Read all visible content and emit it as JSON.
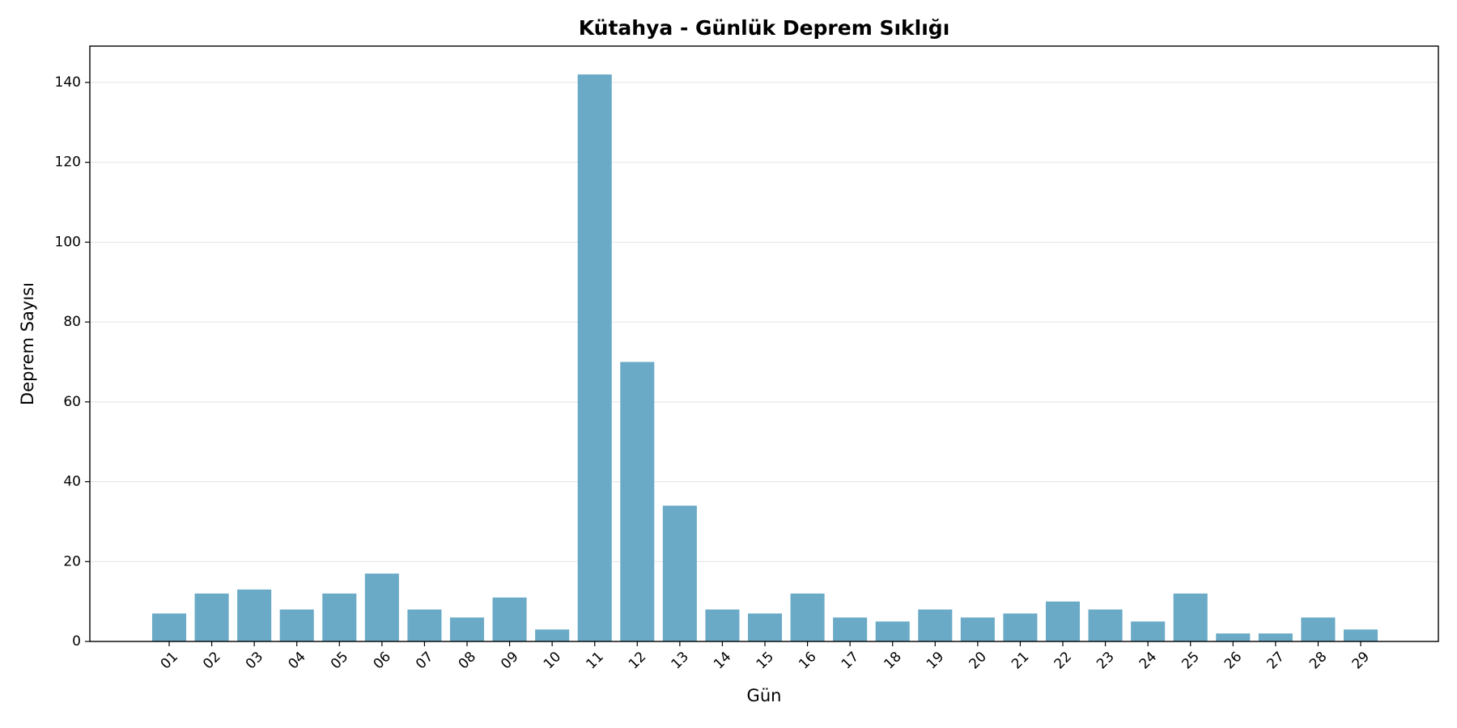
{
  "chart_data": {
    "type": "bar",
    "title": "Kütahya - Günlük Deprem Sıklığı",
    "x_label": "Gün",
    "y_label": "Deprem Sayısı",
    "categories": [
      "01",
      "02",
      "03",
      "04",
      "05",
      "06",
      "07",
      "08",
      "09",
      "10",
      "11",
      "12",
      "13",
      "14",
      "15",
      "16",
      "17",
      "18",
      "19",
      "20",
      "21",
      "22",
      "23",
      "24",
      "25",
      "26",
      "27",
      "28",
      "29"
    ],
    "values": [
      7,
      12,
      13,
      8,
      12,
      17,
      8,
      6,
      11,
      3,
      142,
      70,
      34,
      8,
      7,
      12,
      6,
      5,
      8,
      6,
      7,
      10,
      8,
      5,
      12,
      2,
      2,
      6,
      3
    ],
    "color": "#6aaac6",
    "ylim": [
      0,
      149.1
    ],
    "yticks": [
      0,
      20,
      40,
      60,
      80,
      100,
      120,
      140
    ],
    "grid": true
  }
}
